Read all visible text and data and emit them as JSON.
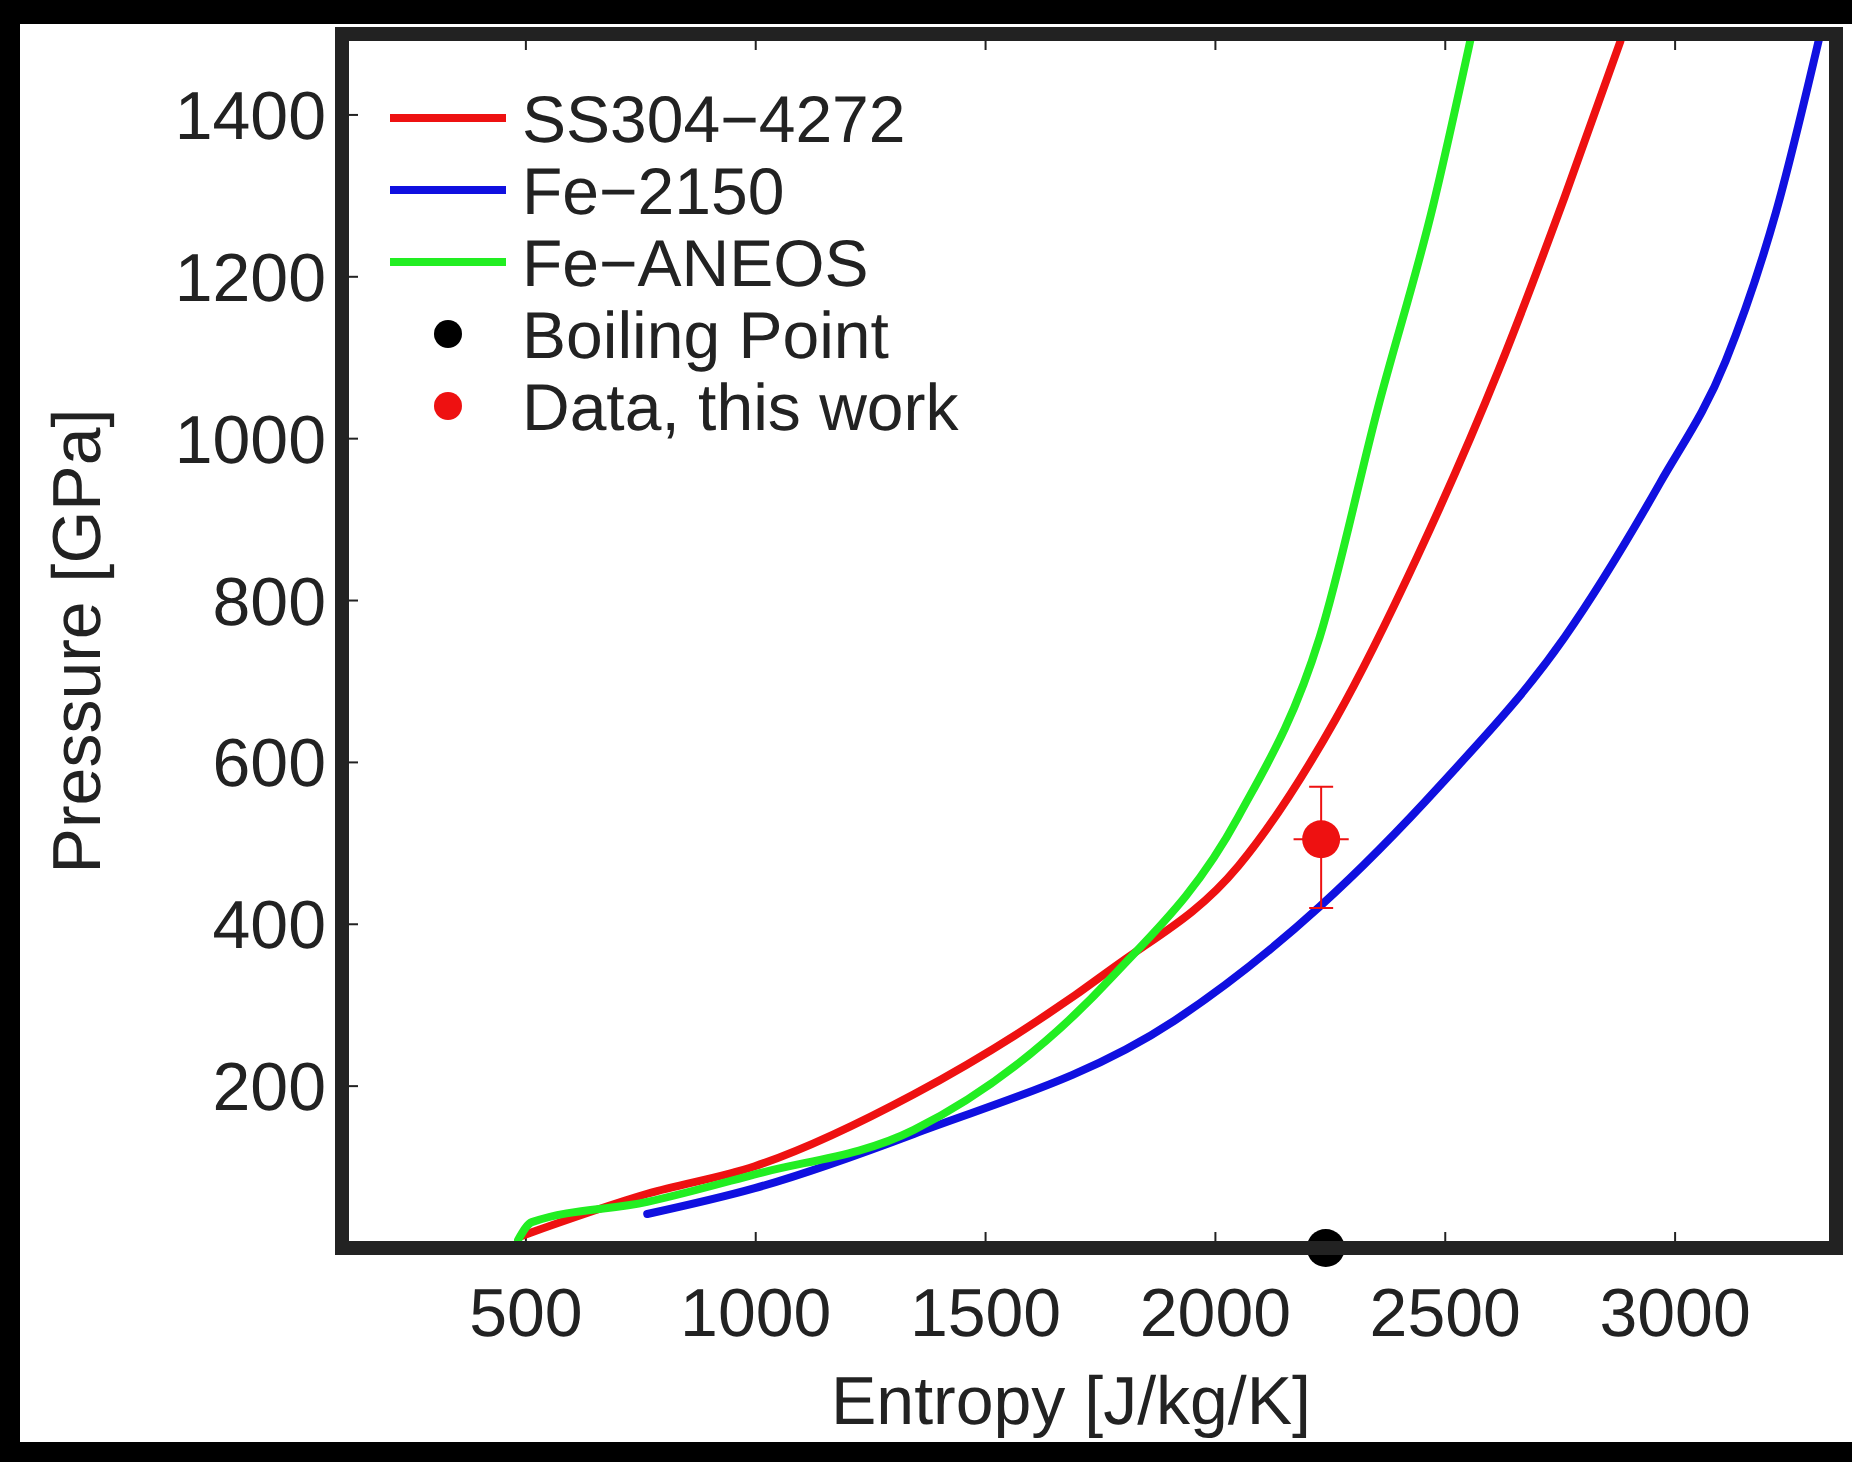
{
  "chart_data": {
    "type": "line",
    "xlabel": "Entropy [J/kg/K]",
    "ylabel": "Pressure [GPa]",
    "xlim": [
      100,
      3350
    ],
    "ylim": [
      0,
      1500
    ],
    "xticks": [
      500,
      1000,
      1500,
      2000,
      2500,
      3000
    ],
    "yticks": [
      200,
      400,
      600,
      800,
      1000,
      1200,
      1400
    ],
    "grid": false,
    "legend": "top left",
    "line_style": "solid",
    "series": [
      {
        "name": "SS304−4272",
        "color": "#ee1111",
        "marker": "none",
        "x": [
          491,
          764,
          998,
          1344,
          1777,
          2050,
          2262,
          2439,
          2617,
          2760,
          2881
        ],
        "values": [
          15,
          67,
          101,
          190,
          346,
          472,
          654,
          854,
          1086,
          1299,
          1491
        ]
      },
      {
        "name": "Fe−2150",
        "color": "#1010e0",
        "marker": "none",
        "x": [
          764,
          998,
          1344,
          1911,
          2227,
          2491,
          2760,
          2968,
          3110,
          3219,
          3314
        ],
        "values": [
          42,
          74,
          141,
          281,
          422,
          573,
          755,
          946,
          1096,
          1279,
          1496
        ]
      },
      {
        "name": "Fe−ANEOS",
        "color": "#22ee22",
        "marker": "none",
        "x": [
          483,
          513,
          764,
          998,
          1344,
          1777,
          2050,
          2227,
          2353,
          2474,
          2556
        ],
        "values": [
          10,
          32,
          57,
          91,
          146,
          336,
          533,
          755,
          1037,
          1289,
          1496
        ]
      },
      {
        "name": "Boiling Point",
        "type": "scatter",
        "marker": "circle",
        "color": "#000000",
        "x": [
          2240
        ],
        "values": [
          0
        ]
      },
      {
        "name": "Data, this work",
        "type": "scatter",
        "marker": "circle",
        "color": "#ee1111",
        "x": [
          2230
        ],
        "values": [
          505
        ],
        "errors": [
          [
            420,
            570
          ]
        ],
        "xerrors": [
          60
        ]
      }
    ]
  }
}
